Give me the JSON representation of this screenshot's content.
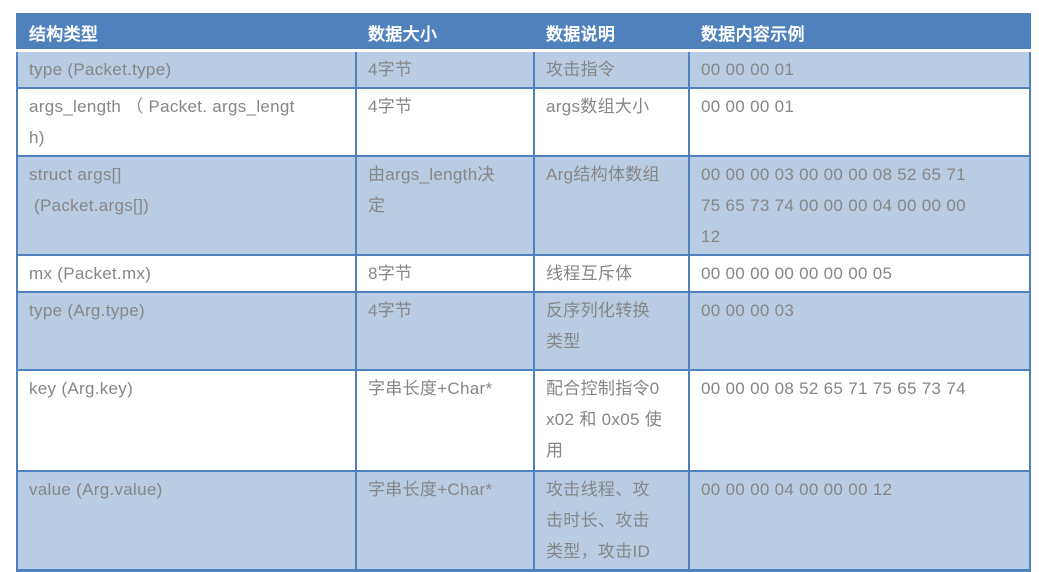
{
  "table": {
    "headers": [
      "结构类型",
      "数据大小",
      "数据说明",
      "数据内容示例"
    ],
    "rows": [
      {
        "shaded": true,
        "cells": [
          "type (Packet.type)",
          "4字节",
          "攻击指令",
          "00 00 00 01"
        ]
      },
      {
        "shaded": false,
        "cells": [
          "args_length （ Packet. args_lengt\nh)",
          "4字节",
          "args数组大小",
          "00 00 00 01"
        ]
      },
      {
        "shaded": true,
        "cells": [
          "struct args[]\n (Packet.args[])",
          "由args_length决\n定",
          "Arg结构体数组",
          "00 00 00 03 00 00 00 08 52 65 71\n75 65 73 74 00 00 00 04 00 00 00\n12"
        ]
      },
      {
        "shaded": false,
        "cells": [
          "mx (Packet.mx)",
          "8字节",
          "线程互斥体",
          "00 00 00 00 00 00 00 05"
        ]
      },
      {
        "shaded": true,
        "cells": [
          "type (Arg.type)",
          "4字节",
          "反序列化转换\n类型",
          "00 00 00 03"
        ]
      },
      {
        "shaded": false,
        "cells": [
          "key (Arg.key)",
          "字串长度+Char*",
          "配合控制指令0\nx02 和 0x05 使\n用",
          "00 00 00 08 52 65 71 75 65 73 74"
        ]
      },
      {
        "shaded": true,
        "cells": [
          "value (Arg.value)",
          "字串长度+Char*",
          "攻击线程、攻\n击时长、攻击\n类型，攻击ID",
          "00 00 00 04 00 00 00 12"
        ]
      }
    ],
    "colors": {
      "header_bg": "#4f81bd",
      "shaded_row_bg": "#b8cce4",
      "border": "#4f81bd",
      "body_text": "#868686",
      "header_text": "#ffffff"
    }
  }
}
